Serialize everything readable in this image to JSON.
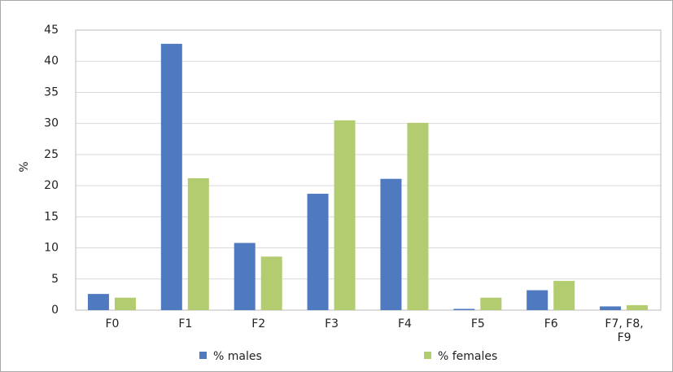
{
  "chart_data": {
    "type": "bar",
    "y_label": "%",
    "categories": [
      "F0",
      "F1",
      "F2",
      "F3",
      "F4",
      "F5",
      "F6",
      "F7, F8, F9"
    ],
    "series": [
      {
        "name": "% males",
        "color": "#4f7ac0",
        "values": [
          2.6,
          42.8,
          10.8,
          18.7,
          21.1,
          0.2,
          3.2,
          0.6
        ]
      },
      {
        "name": "% females",
        "color": "#b3cc6f",
        "values": [
          2.0,
          21.2,
          8.6,
          30.5,
          30.1,
          2.0,
          4.7,
          0.8
        ]
      }
    ],
    "ylim": [
      0,
      45
    ],
    "yticks": [
      0,
      5,
      10,
      15,
      20,
      25,
      30,
      35,
      40,
      45
    ],
    "grid": true,
    "legend": "bottom"
  }
}
